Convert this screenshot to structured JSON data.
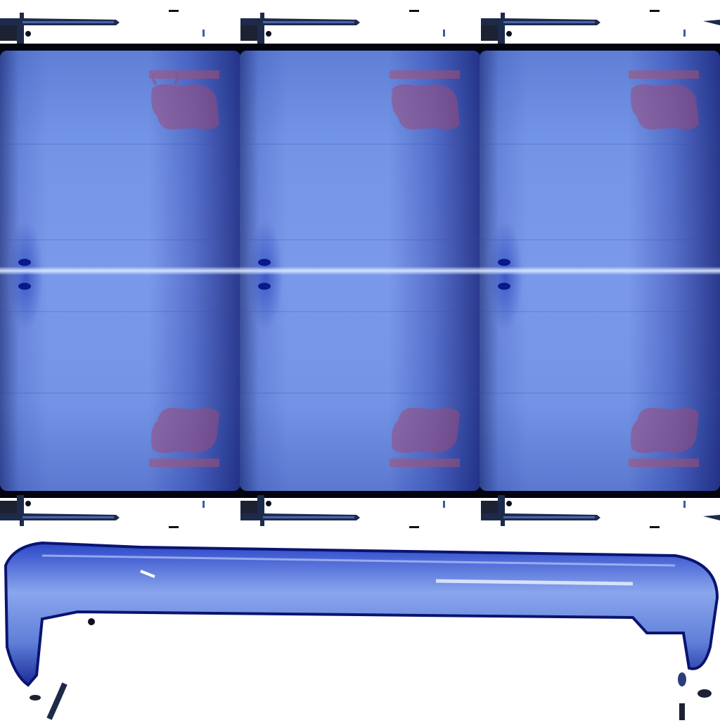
{
  "texture": {
    "colors": {
      "primary": "#7394e6",
      "dark": "#0a1a8a",
      "seam": "#dbe8ff",
      "logo": "#a0507a"
    },
    "tile_count": 3,
    "icons": [
      "bull-logo-icon",
      "pin-icon",
      "handle-bar"
    ]
  }
}
